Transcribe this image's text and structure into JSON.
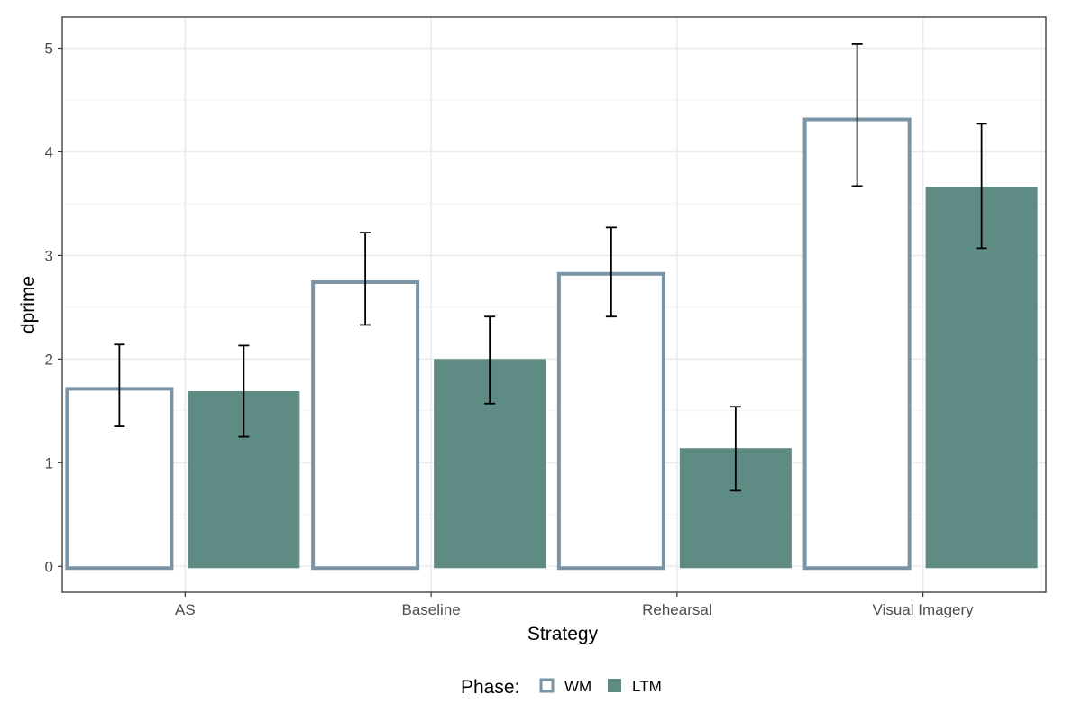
{
  "chart_data": {
    "type": "bar",
    "title": "",
    "xlabel": "Strategy",
    "ylabel": "dprime",
    "categories": [
      "AS",
      "Baseline",
      "Rehearsal",
      "Visual Imagery"
    ],
    "ylim": [
      -0.25,
      5.3
    ],
    "yticks": [
      0,
      1,
      2,
      3,
      4,
      5
    ],
    "grid": true,
    "legend_position": "bottom",
    "legend_title": "Phase:",
    "series": [
      {
        "name": "WM",
        "style": "outline",
        "color": "#7a94a6",
        "values": [
          1.73,
          2.76,
          2.84,
          4.33
        ],
        "error_low": [
          1.35,
          2.33,
          2.41,
          3.67
        ],
        "error_high": [
          2.14,
          3.22,
          3.27,
          5.04
        ]
      },
      {
        "name": "LTM",
        "style": "filled",
        "color": "#5e8b84",
        "values": [
          1.69,
          2.0,
          1.14,
          3.66
        ],
        "error_low": [
          1.25,
          1.57,
          0.73,
          3.07
        ],
        "error_high": [
          2.13,
          2.41,
          1.54,
          4.27
        ]
      }
    ]
  }
}
